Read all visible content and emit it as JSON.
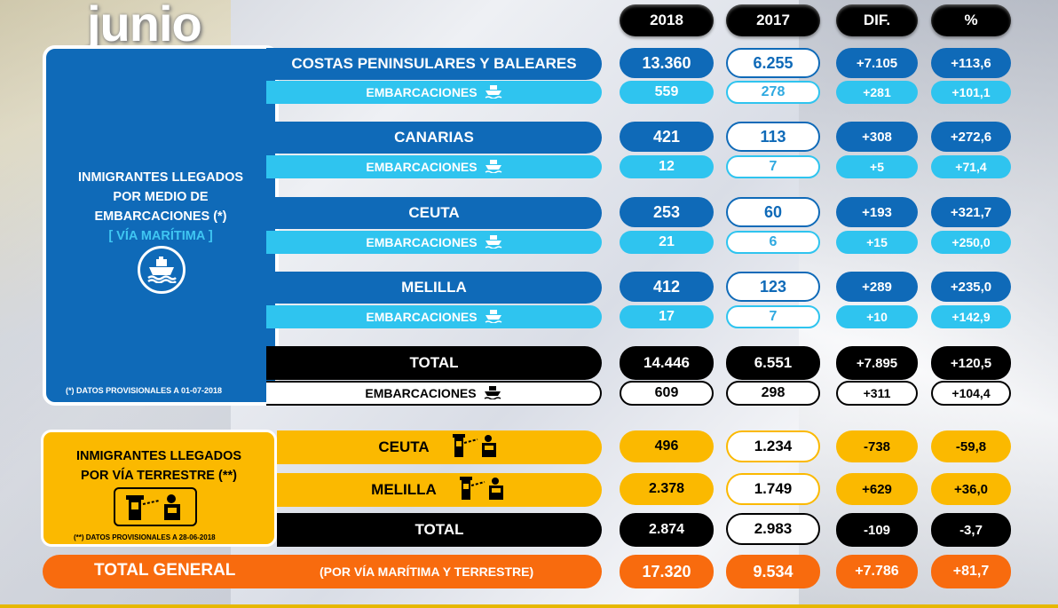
{
  "month": "junio",
  "headers": {
    "y2018": "2018",
    "y2017": "2017",
    "dif": "DIF.",
    "pct": "%"
  },
  "maritime": {
    "title_lines": [
      "INMIGRANTES LLEGADOS",
      "POR MEDIO DE",
      "EMBARCACIONES (*)"
    ],
    "subtitle": "[ VÍA MARÍTIMA ]",
    "note": "(*)  DATOS PROVISIONALES A 01-07-2018",
    "rows": [
      {
        "label": "COSTAS PENINSULARES Y BALEARES",
        "v2018": "13.360",
        "v2017": "6.255",
        "dif": "+7.105",
        "pct": "+113,6",
        "sub_label": "EMBARCACIONES",
        "s2018": "559",
        "s2017": "278",
        "sdif": "+281",
        "spct": "+101,1"
      },
      {
        "label": "CANARIAS",
        "v2018": "421",
        "v2017": "113",
        "dif": "+308",
        "pct": "+272,6",
        "sub_label": "EMBARCACIONES",
        "s2018": "12",
        "s2017": "7",
        "sdif": "+5",
        "spct": "+71,4"
      },
      {
        "label": "CEUTA",
        "v2018": "253",
        "v2017": "60",
        "dif": "+193",
        "pct": "+321,7",
        "sub_label": "EMBARCACIONES",
        "s2018": "21",
        "s2017": "6",
        "sdif": "+15",
        "spct": "+250,0"
      },
      {
        "label": "MELILLA",
        "v2018": "412",
        "v2017": "123",
        "dif": "+289",
        "pct": "+235,0",
        "sub_label": "EMBARCACIONES",
        "s2018": "17",
        "s2017": "7",
        "sdif": "+10",
        "spct": "+142,9"
      }
    ],
    "total": {
      "label": "TOTAL",
      "v2018": "14.446",
      "v2017": "6.551",
      "dif": "+7.895",
      "pct": "+120,5",
      "sub_label": "EMBARCACIONES",
      "s2018": "609",
      "s2017": "298",
      "sdif": "+311",
      "spct": "+104,4"
    }
  },
  "land": {
    "title_lines": [
      "INMIGRANTES LLEGADOS",
      "POR VÍA TERRESTRE (**)"
    ],
    "note": "(**)  DATOS PROVISIONALES A 28-06-2018",
    "rows": [
      {
        "label": "CEUTA",
        "v2018": "496",
        "v2017": "1.234",
        "dif": "-738",
        "pct": "-59,8"
      },
      {
        "label": "MELILLA",
        "v2018": "2.378",
        "v2017": "1.749",
        "dif": "+629",
        "pct": "+36,0"
      }
    ],
    "total": {
      "label": "TOTAL",
      "v2018": "2.874",
      "v2017": "2.983",
      "dif": "-109",
      "pct": "-3,7"
    }
  },
  "grand_total": {
    "label": "TOTAL GENERAL",
    "sublabel": "(POR VÍA MARÍTIMA Y TERRESTRE)",
    "v2018": "17.320",
    "v2017": "9.534",
    "dif": "+7.786",
    "pct": "+81,7"
  },
  "icons": {
    "ship": "ship-icon",
    "border": "border-checkpoint-icon"
  },
  "colors": {
    "blue": "#0f6ab8",
    "light_blue": "#2fc4ef",
    "yellow": "#fbb900",
    "orange": "#f86b0e",
    "black": "#000000"
  }
}
